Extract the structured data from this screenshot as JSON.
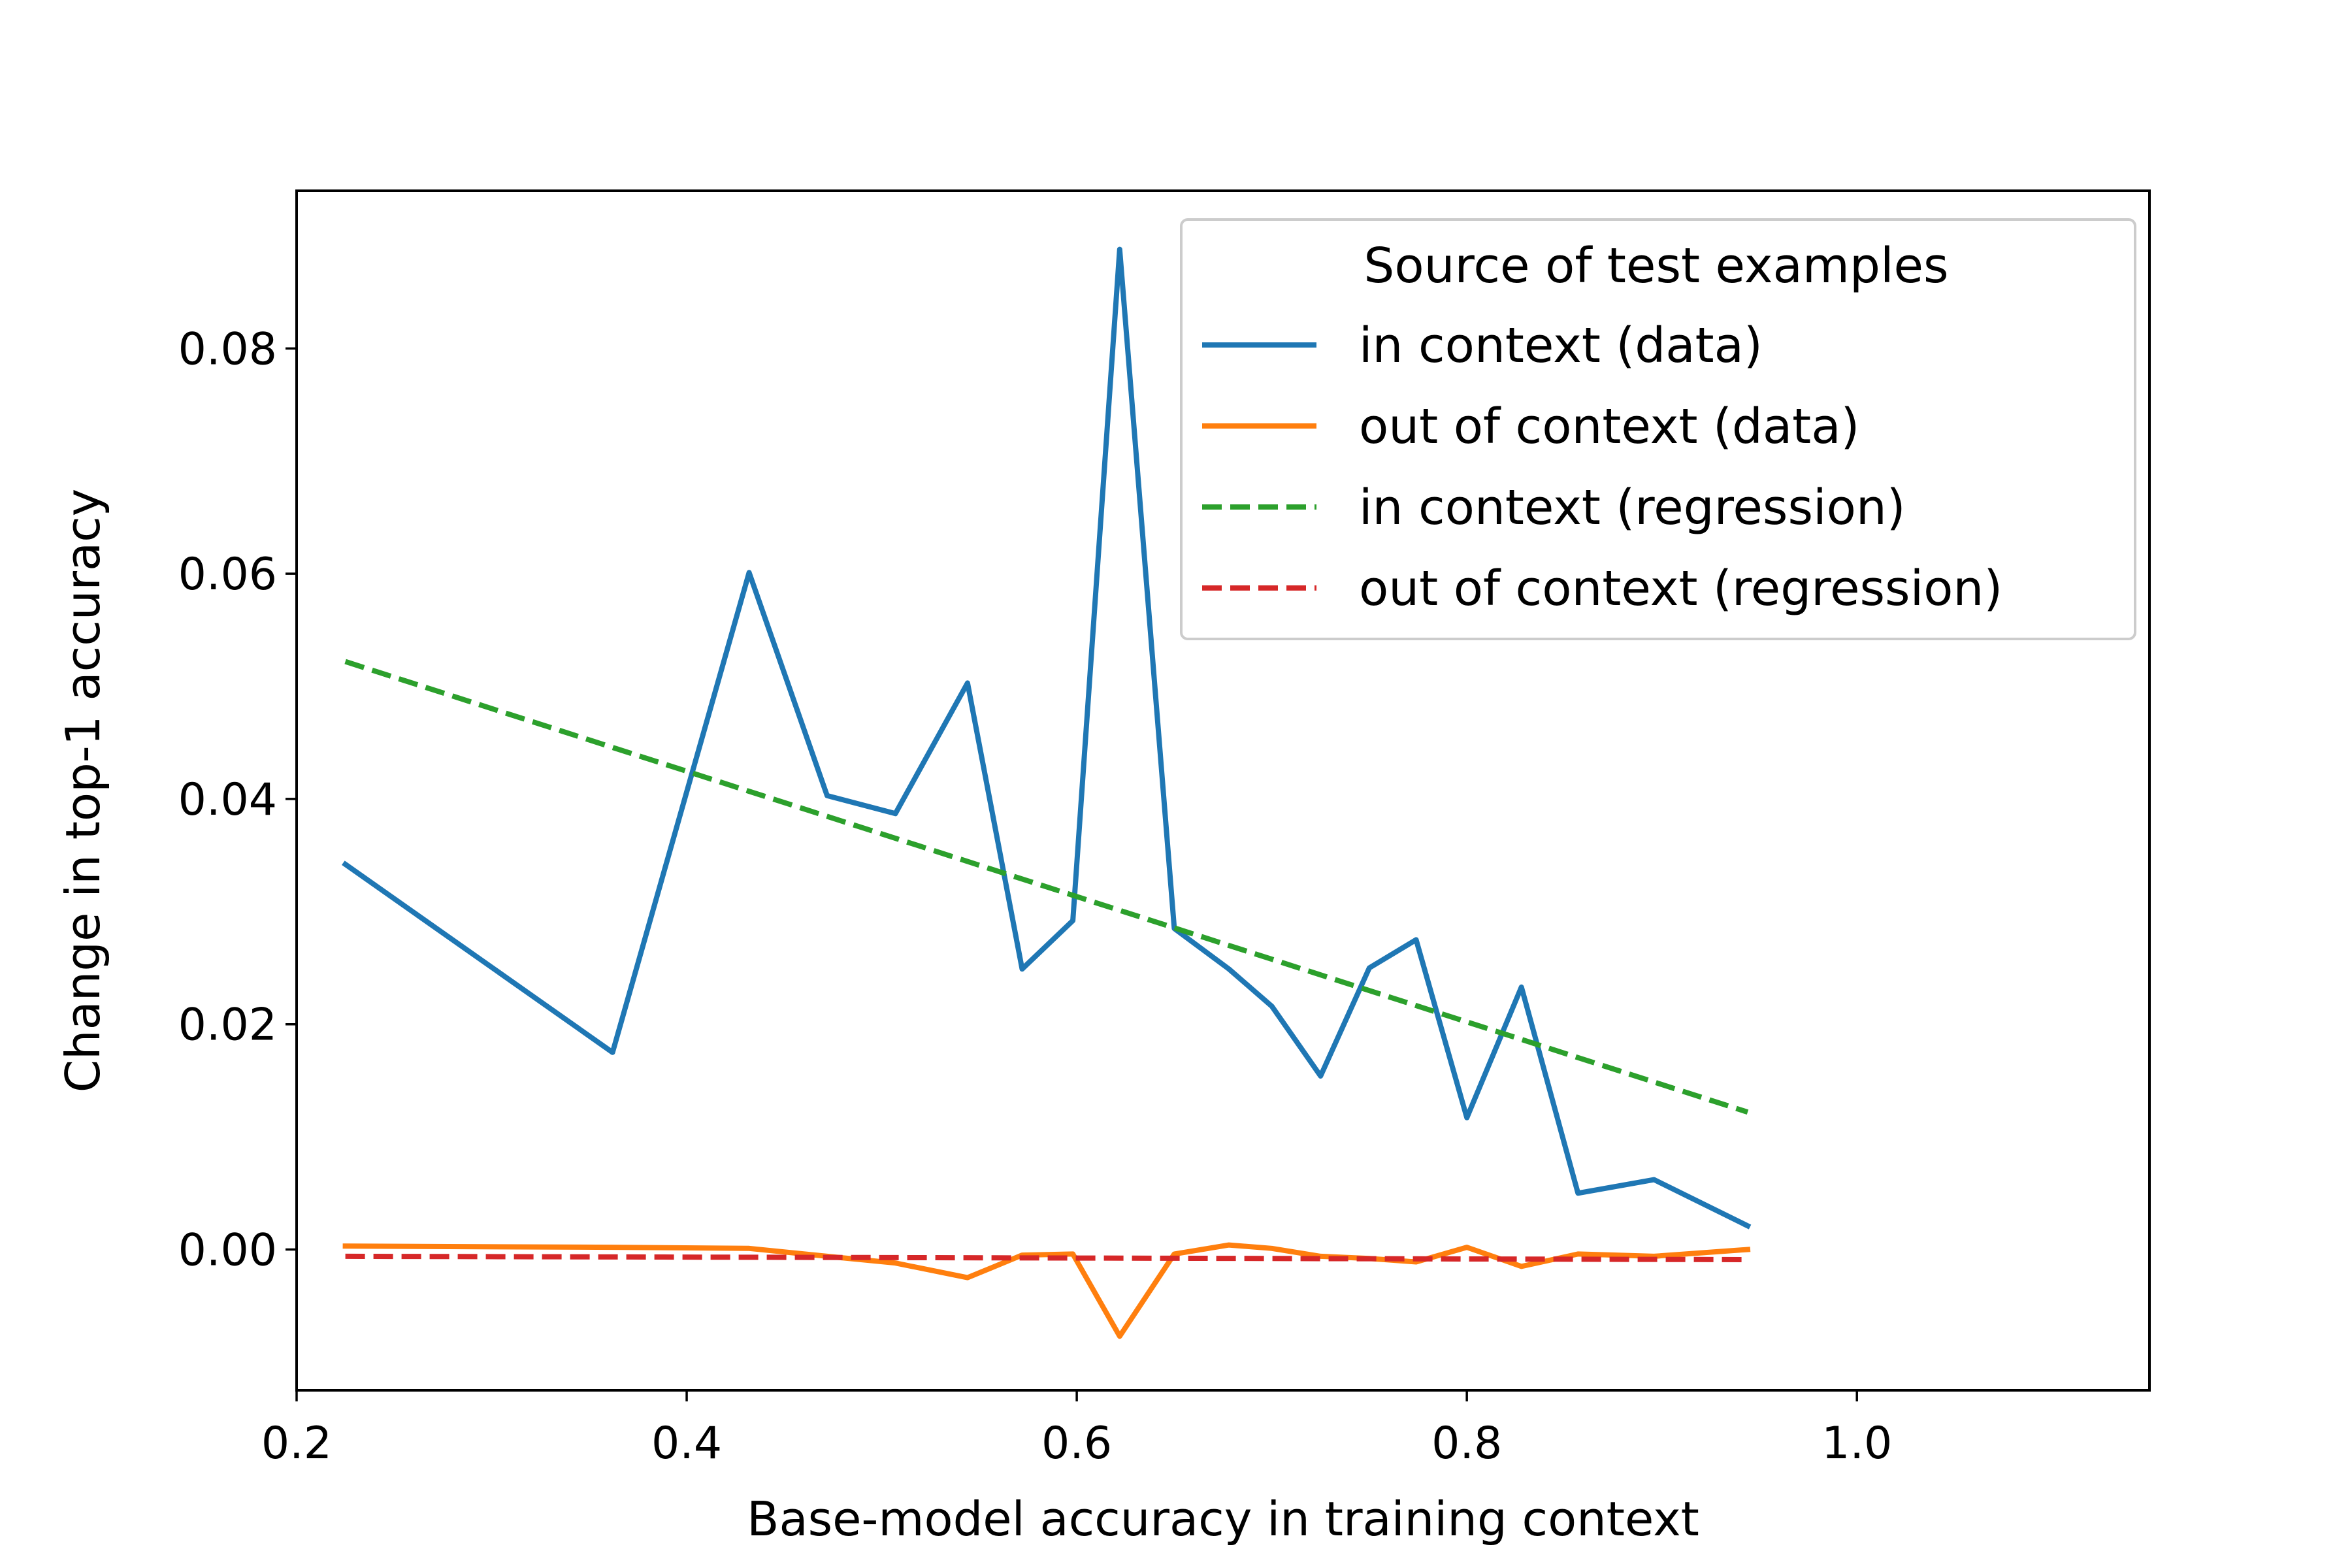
{
  "chart_data": {
    "type": "line",
    "title": "",
    "xlabel": "Base-model accuracy in training context",
    "ylabel": "Change in top-1 accuracy",
    "xlim": [
      0.2,
      1.15
    ],
    "ylim": [
      -0.0125,
      0.094
    ],
    "x_ticks": [
      0.2,
      0.4,
      0.6,
      0.8,
      1.0
    ],
    "x_tick_labels": [
      "0.2",
      "0.4",
      "0.6",
      "0.8",
      "1.0"
    ],
    "y_ticks": [
      0.0,
      0.02,
      0.04,
      0.06,
      0.08
    ],
    "y_tick_labels": [
      "0.00",
      "0.02",
      "0.04",
      "0.06",
      "0.08"
    ],
    "grid": false,
    "legend": {
      "title": "Source of test examples",
      "placement": "top-right"
    },
    "series": [
      {
        "name": "in context (data)",
        "style": "solid",
        "color": "#1f77b4",
        "x": [
          0.225,
          0.362,
          0.432,
          0.472,
          0.507,
          0.544,
          0.572,
          0.598,
          0.622,
          0.65,
          0.678,
          0.7,
          0.725,
          0.75,
          0.774,
          0.8,
          0.828,
          0.857,
          0.896,
          0.944
        ],
        "y": [
          0.0342,
          0.0175,
          0.0601,
          0.0403,
          0.0387,
          0.0503,
          0.0249,
          0.0292,
          0.0888,
          0.0285,
          0.0249,
          0.0216,
          0.0154,
          0.025,
          0.0275,
          0.0117,
          0.0233,
          0.005,
          0.0062,
          0.0021
        ]
      },
      {
        "name": "out of context (data)",
        "style": "solid",
        "color": "#ff7f0e",
        "x": [
          0.225,
          0.362,
          0.432,
          0.472,
          0.507,
          0.544,
          0.572,
          0.598,
          0.622,
          0.65,
          0.678,
          0.7,
          0.725,
          0.75,
          0.774,
          0.8,
          0.828,
          0.857,
          0.896,
          0.944
        ],
        "y": [
          0.0003,
          0.0002,
          0.0001,
          -0.0006,
          -0.0012,
          -0.0025,
          -0.0005,
          -0.0004,
          -0.0077,
          -0.0004,
          0.0004,
          0.0001,
          -0.0006,
          -0.0008,
          -0.0011,
          0.0002,
          -0.0015,
          -0.0004,
          -0.0006,
          0.0
        ]
      },
      {
        "name": "in context (regression)",
        "style": "dashed",
        "color": "#2ca02c",
        "x": [
          0.225,
          0.944
        ],
        "y": [
          0.0522,
          0.0122
        ]
      },
      {
        "name": "out of context (regression)",
        "style": "dashed",
        "color": "#d62728",
        "x": [
          0.225,
          0.944
        ],
        "y": [
          -0.0006,
          -0.0009
        ]
      }
    ]
  }
}
